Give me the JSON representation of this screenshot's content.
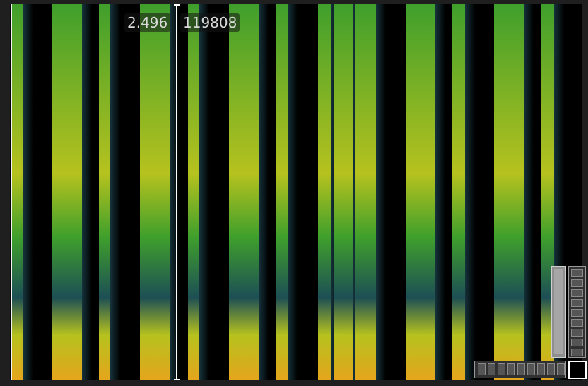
{
  "cursor": {
    "time_readout": "2.496",
    "frequency_readout": "119808"
  },
  "colors": {
    "background": "#000000",
    "low": "#1d4f55",
    "mid": "#3f9f2c",
    "high": "#b6c21e",
    "peak": "#e5a51c"
  },
  "controls": {
    "vertical_scrollbar_icon": "vertical-scrollbar",
    "vertical_zoom_icon": "vertical-zoom-thumbwheel",
    "horizontal_zoom_icon": "horizontal-zoom-thumbwheel",
    "zoom_reset_icon": "square-outline"
  }
}
